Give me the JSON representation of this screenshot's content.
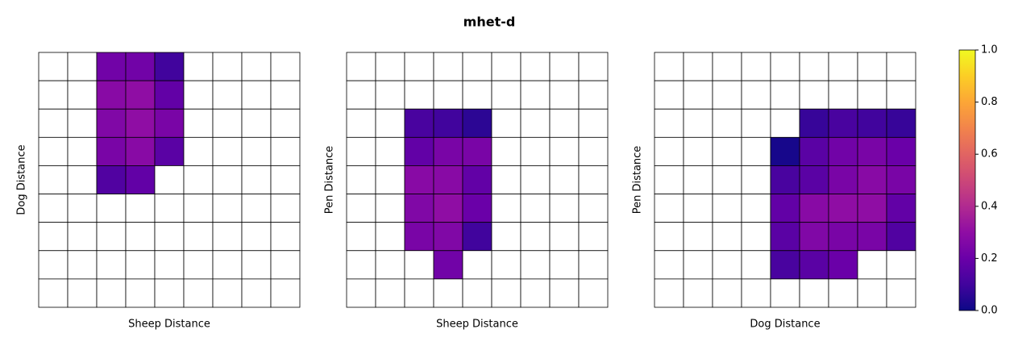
{
  "title": "mhet-d",
  "chart_data": [
    {
      "type": "heatmap",
      "xlabel": "Sheep Distance",
      "ylabel": "Dog Distance",
      "cmap": "plasma",
      "values": [
        [
          null,
          null,
          0.22,
          0.22,
          0.1,
          null,
          null,
          null,
          null
        ],
        [
          null,
          null,
          0.28,
          0.3,
          0.18,
          null,
          null,
          null,
          null
        ],
        [
          null,
          null,
          0.26,
          0.3,
          0.24,
          null,
          null,
          null,
          null
        ],
        [
          null,
          null,
          0.24,
          0.28,
          0.16,
          null,
          null,
          null,
          null
        ],
        [
          null,
          null,
          0.14,
          0.18,
          null,
          null,
          null,
          null,
          null
        ],
        [
          null,
          null,
          null,
          null,
          null,
          null,
          null,
          null,
          null
        ],
        [
          null,
          null,
          null,
          null,
          null,
          null,
          null,
          null,
          null
        ],
        [
          null,
          null,
          null,
          null,
          null,
          null,
          null,
          null,
          null
        ],
        [
          null,
          null,
          null,
          null,
          null,
          null,
          null,
          null,
          null
        ]
      ]
    },
    {
      "type": "heatmap",
      "xlabel": "Sheep Distance",
      "ylabel": "Pen Distance",
      "cmap": "plasma",
      "values": [
        [
          null,
          null,
          null,
          null,
          null,
          null,
          null,
          null,
          null
        ],
        [
          null,
          null,
          null,
          null,
          null,
          null,
          null,
          null,
          null
        ],
        [
          null,
          null,
          0.12,
          0.1,
          0.06,
          null,
          null,
          null,
          null
        ],
        [
          null,
          null,
          0.18,
          0.24,
          0.24,
          null,
          null,
          null,
          null
        ],
        [
          null,
          null,
          0.28,
          0.28,
          0.18,
          null,
          null,
          null,
          null
        ],
        [
          null,
          null,
          0.26,
          0.3,
          0.2,
          null,
          null,
          null,
          null
        ],
        [
          null,
          null,
          0.24,
          0.26,
          0.1,
          null,
          null,
          null,
          null
        ],
        [
          null,
          null,
          null,
          0.22,
          null,
          null,
          null,
          null,
          null
        ],
        [
          null,
          null,
          null,
          null,
          null,
          null,
          null,
          null,
          null
        ]
      ]
    },
    {
      "type": "heatmap",
      "xlabel": "Dog Distance",
      "ylabel": "Pen Distance",
      "cmap": "plasma",
      "values": [
        [
          null,
          null,
          null,
          null,
          null,
          null,
          null,
          null,
          null
        ],
        [
          null,
          null,
          null,
          null,
          null,
          null,
          null,
          null,
          null
        ],
        [
          null,
          null,
          null,
          null,
          null,
          0.08,
          0.12,
          0.1,
          0.08
        ],
        [
          null,
          null,
          null,
          null,
          0.02,
          0.16,
          0.22,
          0.24,
          0.2
        ],
        [
          null,
          null,
          null,
          null,
          0.12,
          0.16,
          0.24,
          0.28,
          0.24
        ],
        [
          null,
          null,
          null,
          null,
          0.18,
          0.28,
          0.3,
          0.3,
          0.18
        ],
        [
          null,
          null,
          null,
          null,
          0.16,
          0.26,
          0.24,
          0.24,
          0.14
        ],
        [
          null,
          null,
          null,
          null,
          0.12,
          0.16,
          0.2,
          null,
          null
        ],
        [
          null,
          null,
          null,
          null,
          null,
          null,
          null,
          null,
          null
        ]
      ]
    }
  ],
  "colorbar": {
    "cmap": "plasma",
    "lim": [
      0,
      1
    ],
    "ticks": [
      {
        "value": 0,
        "label": "0.0"
      },
      {
        "value": 0.2,
        "label": "0.2"
      },
      {
        "value": 0.4,
        "label": "0.4"
      },
      {
        "value": 0.6,
        "label": "0.6"
      },
      {
        "value": 0.8,
        "label": "0.8"
      },
      {
        "value": 1,
        "label": "1.0"
      }
    ]
  }
}
